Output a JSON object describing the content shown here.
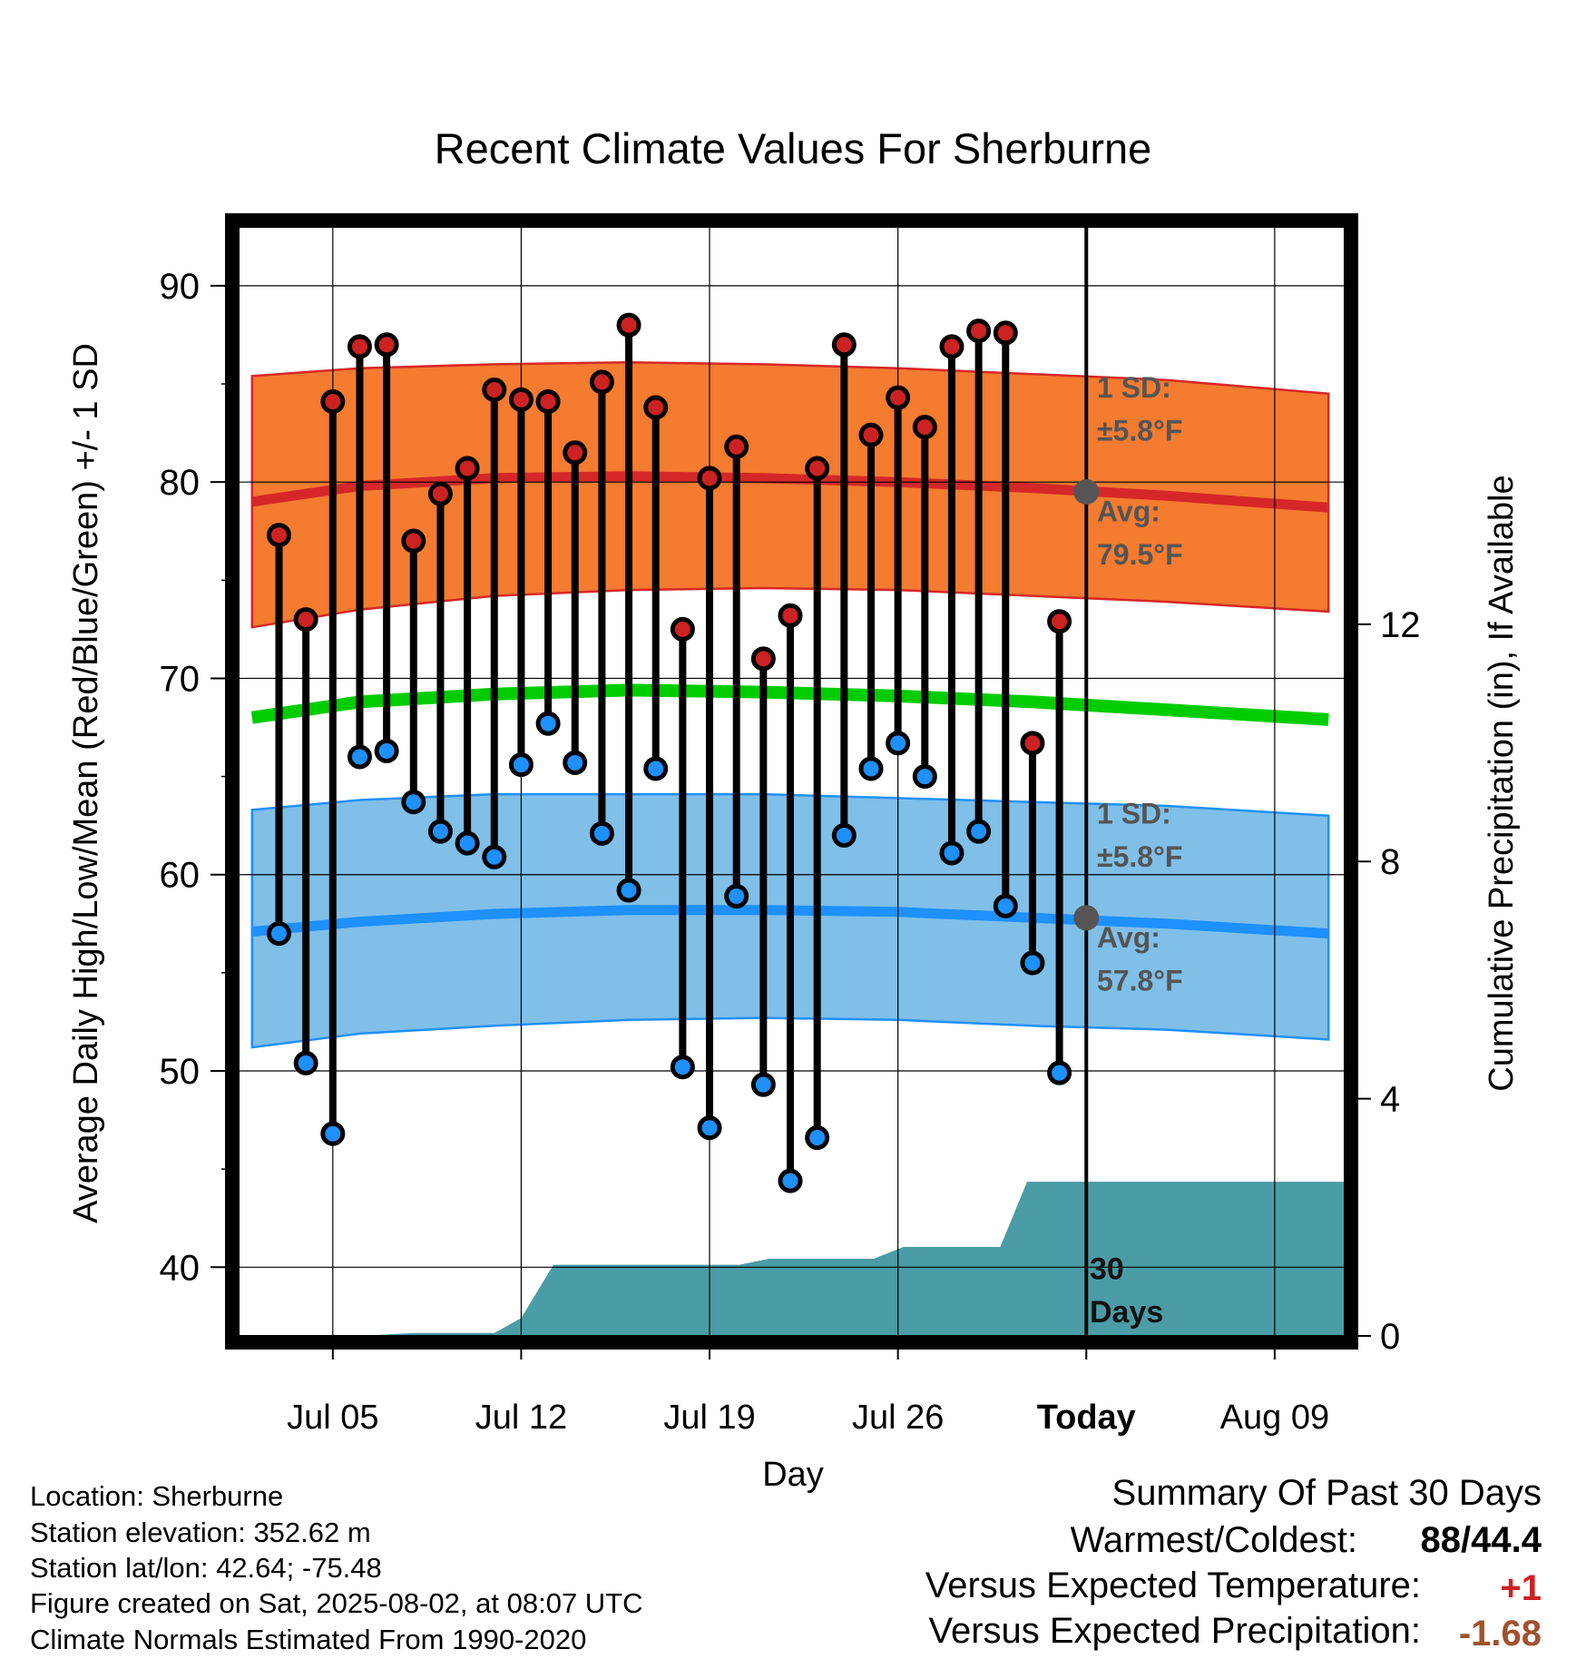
{
  "chart_data": {
    "type": "line",
    "title": "Recent Climate Values For Sherburne",
    "xlabel": "Day",
    "ylabel": "Average Daily High/Low/Mean (Red/Blue/Green) +/- 1 SD",
    "y2label": "Cumulative Precipitation (in), If Available",
    "ylim": [
      36.5,
      93
    ],
    "y2lim": [
      0,
      18.7
    ],
    "xlim": [
      0.5,
      41.6
    ],
    "x_ticks": [
      {
        "x": 4,
        "label": "Jul 05"
      },
      {
        "x": 11,
        "label": "Jul 12"
      },
      {
        "x": 18,
        "label": "Jul 19"
      },
      {
        "x": 25,
        "label": "Jul 26"
      },
      {
        "x": 32,
        "label": "Today"
      },
      {
        "x": 39,
        "label": "Aug 09"
      }
    ],
    "y_ticks": [
      40,
      50,
      60,
      70,
      80,
      90
    ],
    "y2_ticks": [
      0,
      4,
      8,
      12
    ],
    "grid": true,
    "today_x": 32,
    "daily_x": [
      2,
      3,
      4,
      5,
      6,
      7,
      8,
      9,
      10,
      11,
      12,
      13,
      14,
      15,
      16,
      17,
      18,
      19,
      20,
      21,
      22,
      23,
      24,
      25,
      26,
      27,
      28,
      29,
      30,
      31
    ],
    "series": [
      {
        "name": "High",
        "color": "#cc2222",
        "values": [
          77.3,
          73.0,
          84.1,
          86.9,
          87.0,
          77.0,
          79.4,
          80.7,
          84.7,
          84.2,
          84.1,
          81.5,
          85.1,
          88.0,
          83.8,
          72.5,
          80.2,
          81.8,
          71.0,
          73.2,
          80.7,
          87.0,
          82.4,
          84.3,
          82.8,
          86.9,
          87.7,
          87.6,
          66.7,
          72.9
        ]
      },
      {
        "name": "Low",
        "color": "#1e90ff",
        "values": [
          57.0,
          50.4,
          46.8,
          66.0,
          66.3,
          63.7,
          62.2,
          61.6,
          60.9,
          65.6,
          67.7,
          65.7,
          62.1,
          59.2,
          65.4,
          50.2,
          47.1,
          58.9,
          49.3,
          44.4,
          46.6,
          62.0,
          65.4,
          66.7,
          65.0,
          61.1,
          62.2,
          58.4,
          55.5,
          49.9
        ]
      }
    ],
    "normals_x": [
      1,
      5,
      10,
      15,
      20,
      25,
      30,
      35,
      41
    ],
    "normal_high_avg": [
      79.0,
      79.8,
      80.2,
      80.3,
      80.2,
      80.0,
      79.7,
      79.3,
      78.7
    ],
    "normal_high_upper": [
      85.4,
      85.8,
      86.0,
      86.1,
      86.0,
      85.8,
      85.5,
      85.2,
      84.5
    ],
    "normal_high_lower": [
      72.6,
      73.5,
      74.2,
      74.5,
      74.6,
      74.5,
      74.2,
      73.9,
      73.4
    ],
    "normal_mean": [
      68.0,
      68.8,
      69.2,
      69.4,
      69.3,
      69.1,
      68.8,
      68.4,
      67.9
    ],
    "normal_low_avg": [
      57.1,
      57.6,
      58.0,
      58.2,
      58.2,
      58.1,
      57.8,
      57.5,
      57.0
    ],
    "normal_low_upper": [
      63.3,
      63.8,
      64.1,
      64.1,
      64.1,
      63.9,
      63.7,
      63.5,
      63.0
    ],
    "normal_low_lower": [
      51.2,
      51.9,
      52.3,
      52.6,
      52.7,
      52.6,
      52.3,
      52.1,
      51.6
    ],
    "precip_cumulative": [
      {
        "x": 0.5,
        "y": 0
      },
      {
        "x": 5,
        "y": 0
      },
      {
        "x": 7,
        "y": 0.05
      },
      {
        "x": 10,
        "y": 0.05
      },
      {
        "x": 11,
        "y": 0.3
      },
      {
        "x": 12.2,
        "y": 1.2
      },
      {
        "x": 19.1,
        "y": 1.2
      },
      {
        "x": 20.2,
        "y": 1.3
      },
      {
        "x": 24.1,
        "y": 1.3
      },
      {
        "x": 25.2,
        "y": 1.5
      },
      {
        "x": 28.8,
        "y": 1.5
      },
      {
        "x": 29.8,
        "y": 2.6
      },
      {
        "x": 41.6,
        "y": 2.6
      }
    ],
    "colors": {
      "high_band": "#f47b2f",
      "high_avg": "#d62728",
      "mean": "#00cc00",
      "low_band": "#7fbfe8",
      "low_avg": "#1e90ff",
      "precip": "#4a9ca6",
      "annotation": "#555555"
    }
  },
  "annotations": {
    "high_sd_label": "1 SD:",
    "high_sd_value": "±5.8°F",
    "high_avg_label": "Avg:",
    "high_avg_value": "79.5°F",
    "low_sd_label": "1 SD:",
    "low_sd_value": "±5.8°F",
    "low_avg_label": "Avg:",
    "low_avg_value": "57.8°F",
    "days_number": "30",
    "days_label": "Days"
  },
  "footer": {
    "location": "Location: Sherburne",
    "elevation": "Station elevation: 352.62 m",
    "latlon": "Station lat/lon: 42.64; -75.48",
    "created": "Figure created on Sat, 2025-08-02, at 08:07 UTC",
    "normals": "Climate Normals Estimated From 1990-2020"
  },
  "summary": {
    "heading": "Summary Of Past 30 Days",
    "warm_cold_label": "Warmest/Coldest:",
    "warm_cold_value": "88/44.4",
    "temp_label": "Versus Expected Temperature:",
    "temp_value": "+1",
    "temp_color": "#cc2222",
    "precip_label": "Versus Expected Precipitation:",
    "precip_value": "-1.68",
    "precip_color": "#a0522d"
  }
}
